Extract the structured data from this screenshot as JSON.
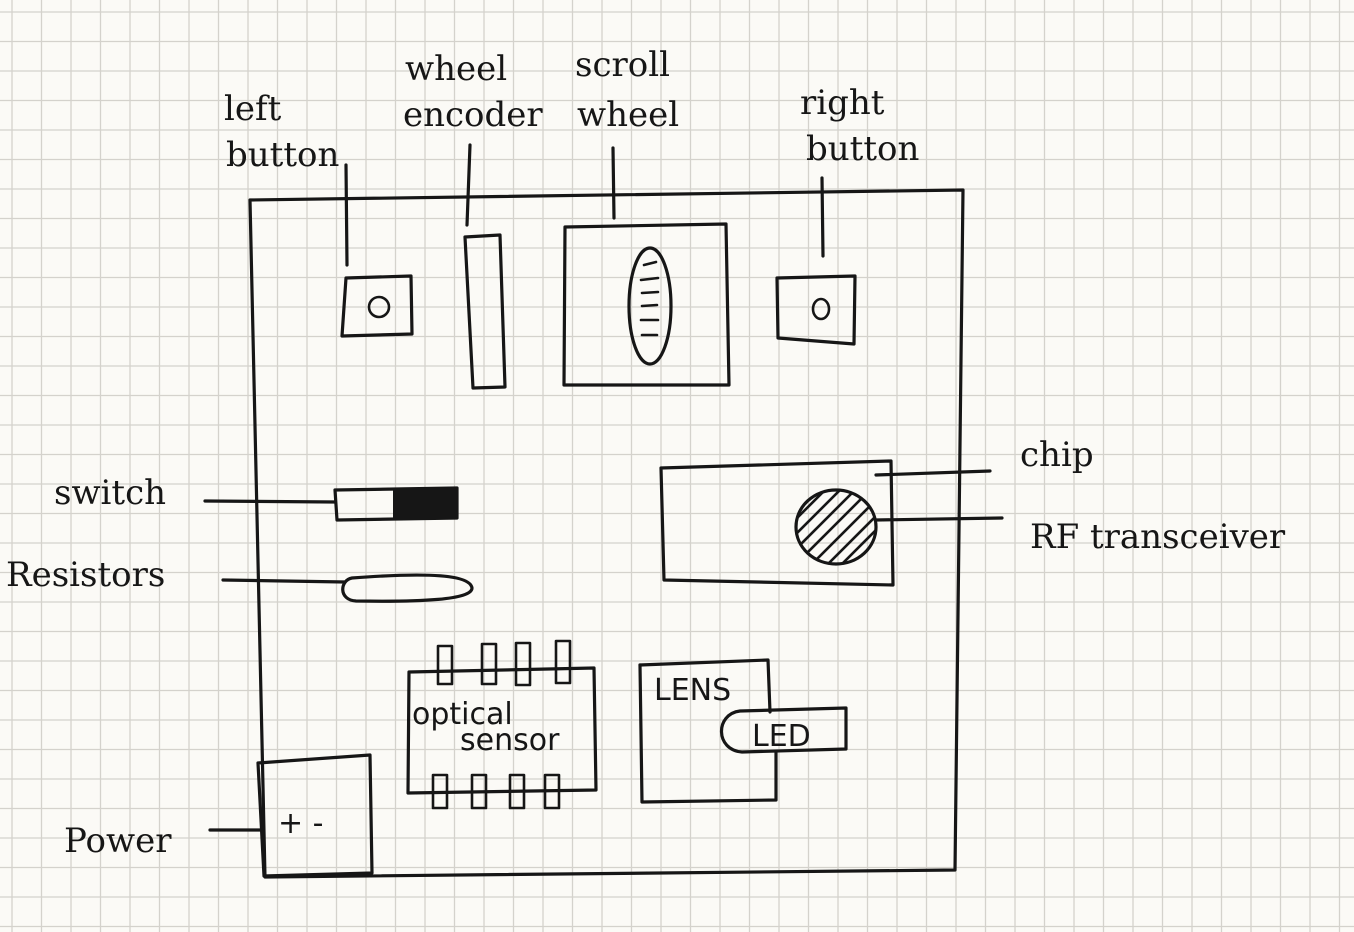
{
  "labels": {
    "left_button": [
      "left",
      "button"
    ],
    "wheel_encoder": [
      "wheel",
      "encoder"
    ],
    "scroll_wheel": [
      "scroll",
      "wheel"
    ],
    "right_button": [
      "right",
      "button"
    ],
    "chip": "chip",
    "rf_transceiver": "RF transceiver",
    "switch": "switch",
    "resistors": "Resistors",
    "power": "Power",
    "optical_sensor": [
      "optical",
      "sensor"
    ],
    "lens": "LENS",
    "led": "LED",
    "battery_terminals": "+ -"
  },
  "colors": {
    "paper": "#fbfaf6",
    "grid": "#d4d2cc",
    "ink": "#161616"
  }
}
